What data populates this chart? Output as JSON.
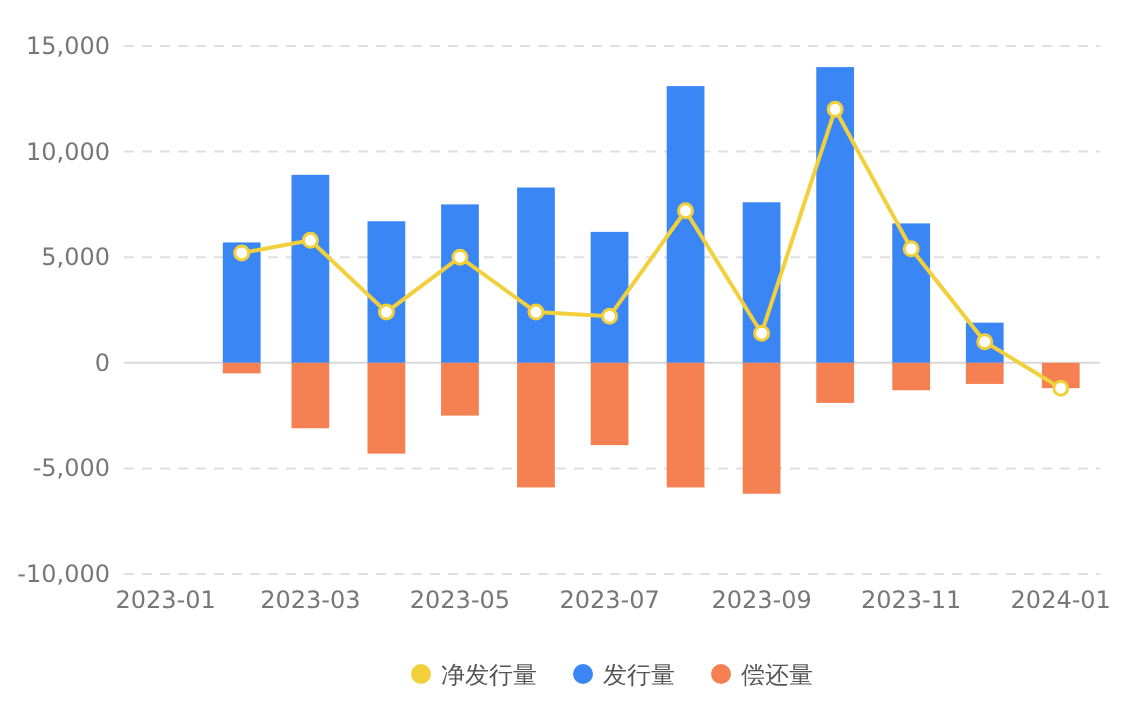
{
  "chart_data": {
    "type": "bar",
    "stacked": true,
    "x": [
      "2023-02",
      "2023-03",
      "2023-04",
      "2023-05",
      "2023-06",
      "2023-07",
      "2023-08",
      "2023-09",
      "2023-10",
      "2023-11",
      "2023-12",
      "2024-01"
    ],
    "series": [
      {
        "name": "净发行量",
        "type": "line",
        "color": "#f2d03b",
        "marker": "circle",
        "values": [
          5200,
          5800,
          2400,
          5000,
          2400,
          2200,
          7200,
          1400,
          12000,
          5400,
          1000,
          -1200
        ]
      },
      {
        "name": "发行量",
        "color": "#3b86f5",
        "values": [
          5700,
          8900,
          6700,
          7500,
          8300,
          6200,
          13100,
          7600,
          14000,
          6600,
          1900,
          null
        ]
      },
      {
        "name": "偿还量",
        "color": "#f58152",
        "values": [
          -500,
          -3100,
          -4300,
          -2500,
          -5900,
          -3900,
          -5900,
          -6200,
          -1900,
          -1300,
          -1000,
          -1200
        ]
      }
    ],
    "ylim": [
      -10000,
      15000
    ],
    "yticks": [
      {
        "value": -10000,
        "label": "-10,000"
      },
      {
        "value": -5000,
        "label": "-5,000"
      },
      0,
      {
        "value": 5000,
        "label": "5,000"
      },
      {
        "value": 10000,
        "label": "10,000"
      },
      {
        "value": 15000,
        "label": "15,000"
      }
    ],
    "xlim": [
      "2022-12-15",
      "2024-01-17"
    ],
    "xticks": [
      "2023-01",
      "2023-03",
      "2023-05",
      "2023-07",
      "2023-09",
      "2023-11",
      "2024-01"
    ],
    "grid": "y",
    "legend": "bottom"
  }
}
